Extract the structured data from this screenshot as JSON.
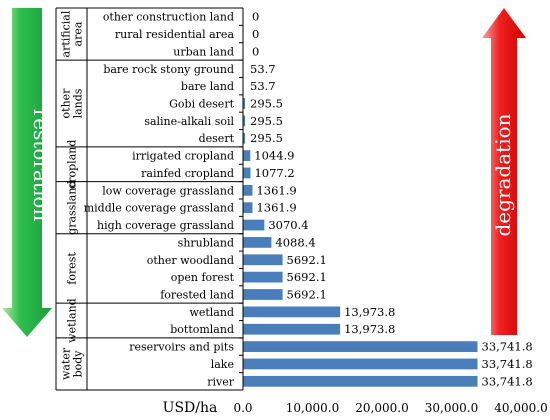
{
  "chart_data": {
    "type": "bar",
    "orientation": "horizontal",
    "xlabel": "USD/ha",
    "xlim": [
      0,
      40000
    ],
    "x_ticks": [
      "0.0",
      "10,000.0",
      "20,000.0",
      "30,000.0",
      "40,000.0"
    ],
    "x_tick_values": [
      0,
      10000,
      20000,
      30000,
      40000
    ],
    "grid": false,
    "bar_color": "#4a7ebb",
    "categories": [
      "other construction land",
      "rural residential area",
      "urban land",
      "bare rock stony ground",
      "bare land",
      "Gobi desert",
      "saline-alkali soil",
      "desert",
      "irrigated cropland",
      "rainfed cropland",
      "low coverage grassland",
      "middle coverage grassland",
      "high coverage grassland",
      "shrubland",
      "other woodland",
      "open forest",
      "forested land",
      "wetland",
      "bottomland",
      "reservoirs and pits",
      "lake",
      "river"
    ],
    "values": [
      0,
      0,
      0,
      53.7,
      53.7,
      295.5,
      295.5,
      295.5,
      1044.9,
      1077.2,
      1361.9,
      1361.9,
      3070.4,
      4088.4,
      5692.1,
      5692.1,
      5692.1,
      13973.8,
      13973.8,
      33741.8,
      33741.8,
      33741.8
    ],
    "value_labels": [
      "0",
      "0",
      "0",
      "53.7",
      "53.7",
      "295.5",
      "295.5",
      "295.5",
      "1044.9",
      "1077.2",
      "1361.9",
      "1361.9",
      "3070.4",
      "4088.4",
      "5692.1",
      "5692.1",
      "5692.1",
      "13,973.8",
      "13,973.8",
      "33,741.8",
      "33,741.8",
      "33,741.8"
    ],
    "groups": [
      {
        "label": "artificial area",
        "from": 0,
        "to": 2
      },
      {
        "label": "other lands",
        "from": 3,
        "to": 7
      },
      {
        "label": "cropland",
        "from": 8,
        "to": 9
      },
      {
        "label": "grassland",
        "from": 10,
        "to": 12
      },
      {
        "label": "forest",
        "from": 13,
        "to": 16
      },
      {
        "label": "wetland",
        "from": 17,
        "to": 18
      },
      {
        "label": "water body",
        "from": 19,
        "to": 21
      }
    ],
    "annotations": {
      "left_arrow": {
        "text": "restoration",
        "color": "#1db04a"
      },
      "right_arrow": {
        "text": "degradation",
        "color": "#e01010"
      }
    }
  }
}
